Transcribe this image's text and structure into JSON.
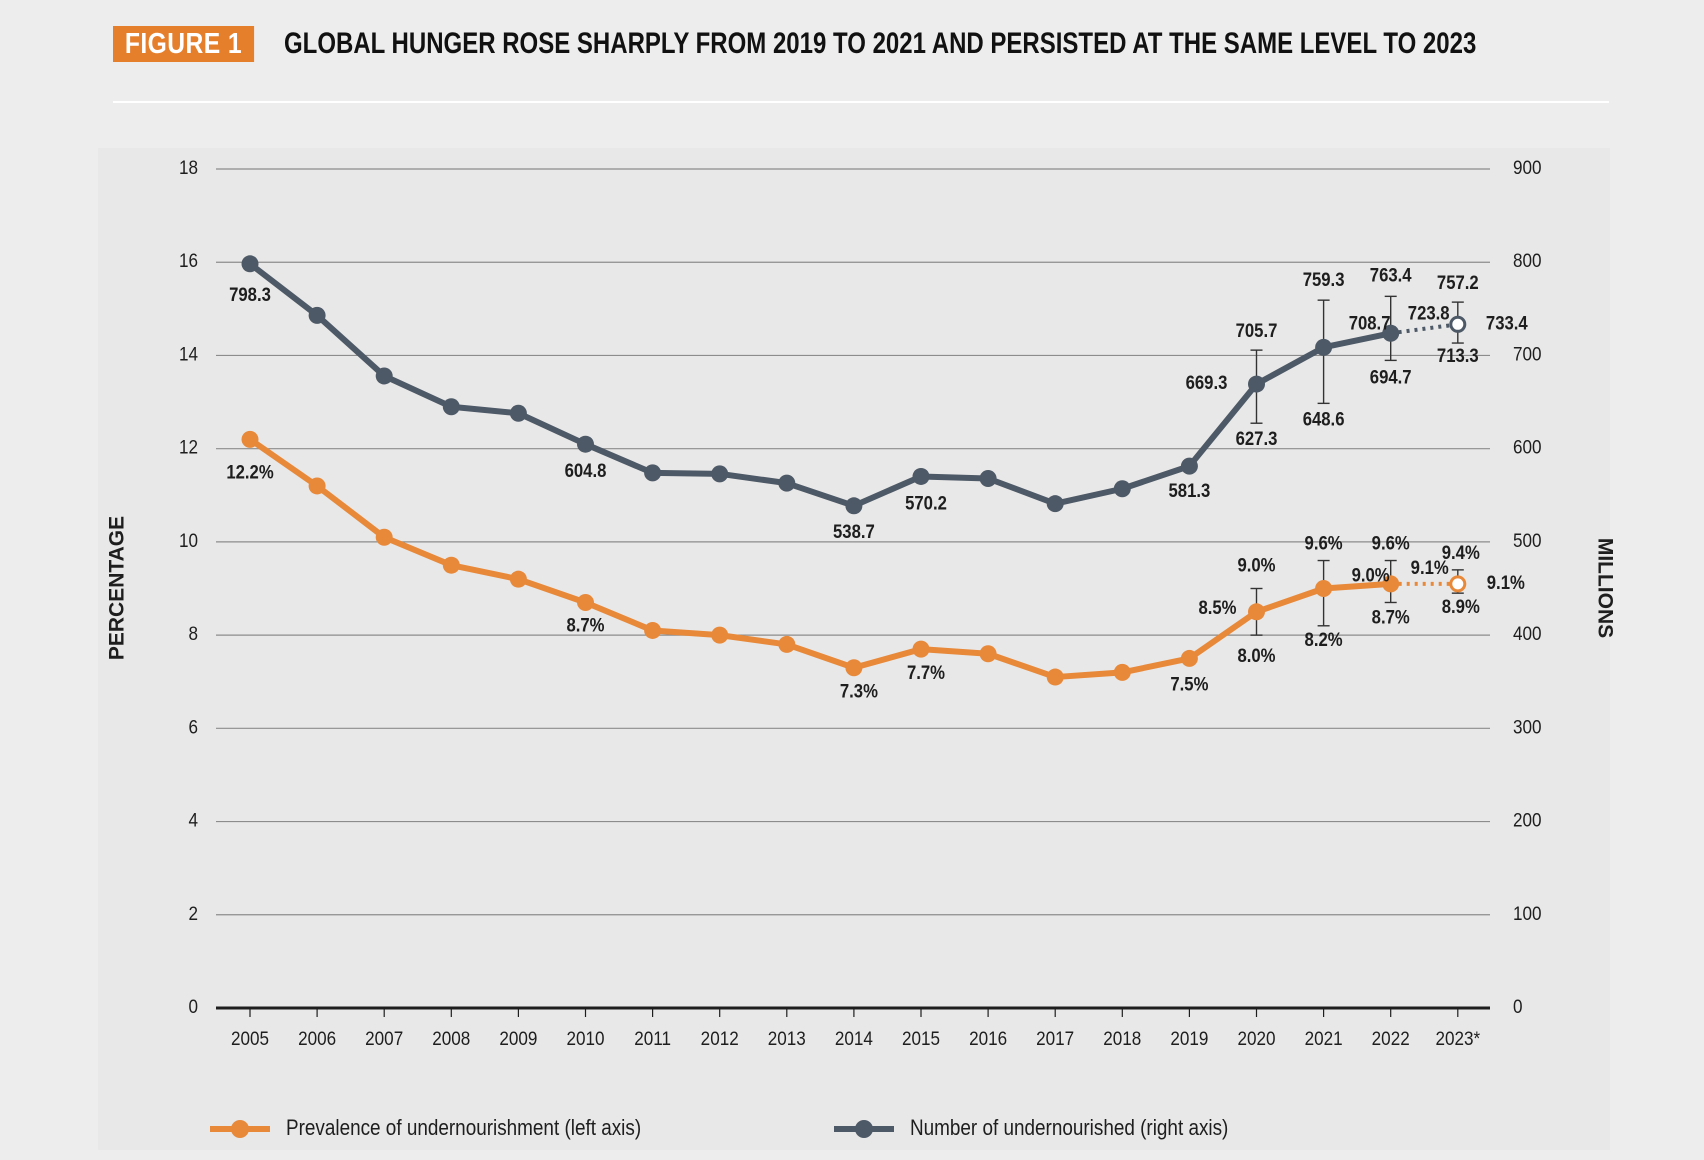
{
  "header": {
    "badge": "FIGURE 1",
    "title": "GLOBAL HUNGER ROSE SHARPLY FROM 2019 TO 2021 AND PERSISTED AT THE SAME LEVEL TO 2023"
  },
  "colors": {
    "prevalence": "#e8893a",
    "number": "#4d5966",
    "gridline": "#8c8c8c",
    "badge": "#e57f2c"
  },
  "chart_data": {
    "type": "line",
    "categories": [
      "2005",
      "2006",
      "2007",
      "2008",
      "2009",
      "2010",
      "2011",
      "2012",
      "2013",
      "2014",
      "2015",
      "2016",
      "2017",
      "2018",
      "2019",
      "2020",
      "2021",
      "2022",
      "2023*"
    ],
    "left_axis": {
      "label": "PERCENTAGE",
      "range": [
        0,
        18
      ],
      "ticks": [
        0,
        2,
        4,
        6,
        8,
        10,
        12,
        14,
        16,
        18
      ]
    },
    "right_axis": {
      "label": "MILLIONS",
      "range": [
        0,
        900
      ],
      "ticks": [
        0,
        100,
        200,
        300,
        400,
        500,
        600,
        700,
        800,
        900
      ]
    },
    "grid": true,
    "legend_position": "bottom",
    "series": [
      {
        "name": "Prevalence of undernourishment (left axis)",
        "axis": "left",
        "color": "#e8893a",
        "values": [
          12.2,
          11.2,
          10.1,
          9.5,
          9.2,
          8.7,
          8.1,
          8.0,
          7.8,
          7.3,
          7.7,
          7.6,
          7.1,
          7.2,
          7.5,
          8.5,
          9.0,
          9.1,
          9.1
        ],
        "projected_from_index": 17,
        "point_labels": [
          {
            "index": 0,
            "text": "12.2%"
          },
          {
            "index": 5,
            "text": "8.7%"
          },
          {
            "index": 9,
            "text": "7.3%"
          },
          {
            "index": 10,
            "text": "7.7%"
          },
          {
            "index": 14,
            "text": "7.5%"
          },
          {
            "index": 15,
            "text": "8.5%"
          },
          {
            "index": 16,
            "text": "9.0%"
          },
          {
            "index": 17,
            "text": "9.1%"
          },
          {
            "index": 18,
            "text": "9.1%"
          }
        ],
        "ranges": [
          {
            "index": 15,
            "low": 8.0,
            "high": 9.0,
            "low_label": "8.0%",
            "high_label": "9.0%"
          },
          {
            "index": 16,
            "low": 8.2,
            "high": 9.6,
            "low_label": "8.2%",
            "high_label": "9.6%"
          },
          {
            "index": 17,
            "low": 8.7,
            "high": 9.6,
            "low_label": "8.7%",
            "high_label": "9.6%"
          },
          {
            "index": 18,
            "low": 8.9,
            "high": 9.4,
            "low_label": "8.9%",
            "high_label": "9.4%"
          }
        ]
      },
      {
        "name": "Number of undernourished (right axis)",
        "axis": "right",
        "color": "#4d5966",
        "values": [
          798.3,
          743,
          678,
          645,
          638,
          604.8,
          574,
          573,
          563,
          538.7,
          570.2,
          568,
          541,
          557,
          581.3,
          669.3,
          708.7,
          723.8,
          733.4
        ],
        "projected_from_index": 17,
        "point_labels": [
          {
            "index": 0,
            "text": "798.3"
          },
          {
            "index": 5,
            "text": "604.8"
          },
          {
            "index": 9,
            "text": "538.7"
          },
          {
            "index": 10,
            "text": "570.2"
          },
          {
            "index": 14,
            "text": "581.3"
          },
          {
            "index": 15,
            "text": "669.3"
          },
          {
            "index": 16,
            "text": "708.7"
          },
          {
            "index": 17,
            "text": "723.8"
          },
          {
            "index": 18,
            "text": "733.4"
          }
        ],
        "ranges": [
          {
            "index": 15,
            "low": 627.3,
            "high": 705.7,
            "low_label": "627.3",
            "high_label": "705.7"
          },
          {
            "index": 16,
            "low": 648.6,
            "high": 759.3,
            "low_label": "648.6",
            "high_label": "759.3"
          },
          {
            "index": 17,
            "low": 694.7,
            "high": 763.4,
            "low_label": "694.7",
            "high_label": "763.4"
          },
          {
            "index": 18,
            "low": 713.3,
            "high": 757.2,
            "low_label": "713.3",
            "high_label": "757.2"
          }
        ]
      }
    ]
  }
}
